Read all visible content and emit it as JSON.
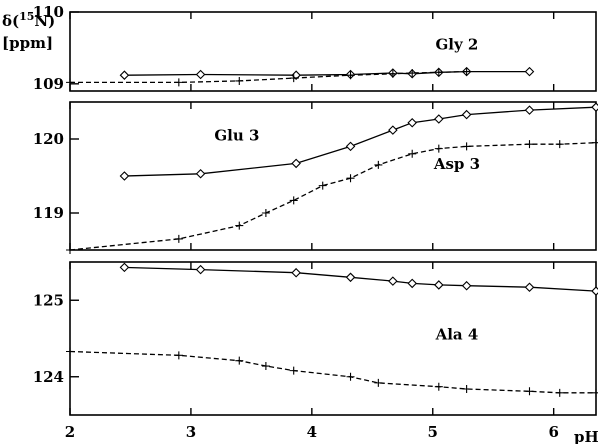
{
  "chart_data": {
    "type": "line",
    "xlabel": "pH",
    "ylabel_line1": "δ(",
    "ylabel_sup": "15",
    "ylabel_line1_end": "N)",
    "ylabel_line2": "[ppm]",
    "xlim": [
      2,
      6.35
    ],
    "x_ticks": [
      "2",
      "3",
      "4",
      "5",
      "6"
    ],
    "grid": false,
    "panels": [
      {
        "ylim": [
          108.9,
          110
        ],
        "y_ticks": [
          "110",
          "109"
        ],
        "series": [
          {
            "name": "Gly 2",
            "style": "solid",
            "marker": "diamond",
            "x": [
              2.45,
              3.08,
              3.87,
              4.32,
              4.67,
              4.83,
              5.05,
              5.28,
              5.8
            ],
            "y": [
              109.12,
              109.13,
              109.12,
              109.13,
              109.15,
              109.14,
              109.16,
              109.17,
              109.17
            ]
          },
          {
            "name": "",
            "style": "dashed",
            "marker": "plus",
            "x": [
              2.0,
              2.9,
              3.4,
              3.85,
              4.32,
              4.67,
              4.83,
              5.05,
              5.28
            ],
            "y": [
              109.02,
              109.02,
              109.04,
              109.08,
              109.12,
              109.14,
              109.15,
              109.16,
              109.17
            ]
          }
        ],
        "labels": [
          {
            "text": "Gly 2",
            "x": 5.2,
            "y": 109.55
          }
        ]
      },
      {
        "ylim": [
          118.5,
          120.5
        ],
        "y_ticks": [
          "120",
          "119"
        ],
        "series": [
          {
            "name": "Glu 3",
            "style": "solid",
            "marker": "diamond",
            "x": [
              2.45,
              3.08,
              3.87,
              4.32,
              4.67,
              4.83,
              5.05,
              5.28,
              5.8,
              6.35
            ],
            "y": [
              119.5,
              119.53,
              119.67,
              119.9,
              120.12,
              120.22,
              120.27,
              120.33,
              120.39,
              120.43
            ]
          },
          {
            "name": "Asp 3",
            "style": "dashed",
            "marker": "plus",
            "x": [
              2.0,
              2.9,
              3.4,
              3.62,
              3.85,
              4.09,
              4.32,
              4.55,
              4.83,
              5.05,
              5.28,
              5.8,
              6.05,
              6.35
            ],
            "y": [
              118.5,
              118.65,
              118.83,
              119.0,
              119.17,
              119.37,
              119.47,
              119.65,
              119.8,
              119.87,
              119.9,
              119.93,
              119.93,
              119.95
            ]
          }
        ],
        "labels": [
          {
            "text": "Glu 3",
            "x": 3.38,
            "y": 120.05
          },
          {
            "text": "Asp 3",
            "x": 5.2,
            "y": 119.66
          }
        ]
      },
      {
        "ylim": [
          123.5,
          125.5
        ],
        "y_ticks": [
          "125",
          "124"
        ],
        "series": [
          {
            "name": "Ala 4",
            "style": "solid",
            "marker": "diamond",
            "x": [
              2.45,
              3.08,
              3.87,
              4.32,
              4.67,
              4.83,
              5.05,
              5.28,
              5.8,
              6.35
            ],
            "y": [
              125.43,
              125.4,
              125.36,
              125.3,
              125.25,
              125.22,
              125.2,
              125.19,
              125.17,
              125.12
            ]
          },
          {
            "name": "",
            "style": "dashed",
            "marker": "plus",
            "x": [
              2.0,
              2.9,
              3.4,
              3.62,
              3.85,
              4.32,
              4.55,
              5.05,
              5.28,
              5.8,
              6.05,
              6.35
            ],
            "y": [
              124.33,
              124.28,
              124.21,
              124.14,
              124.08,
              124.0,
              123.92,
              123.87,
              123.84,
              123.81,
              123.79,
              123.79
            ]
          }
        ],
        "labels": [
          {
            "text": "Ala 4",
            "x": 5.2,
            "y": 124.55
          }
        ]
      }
    ]
  }
}
